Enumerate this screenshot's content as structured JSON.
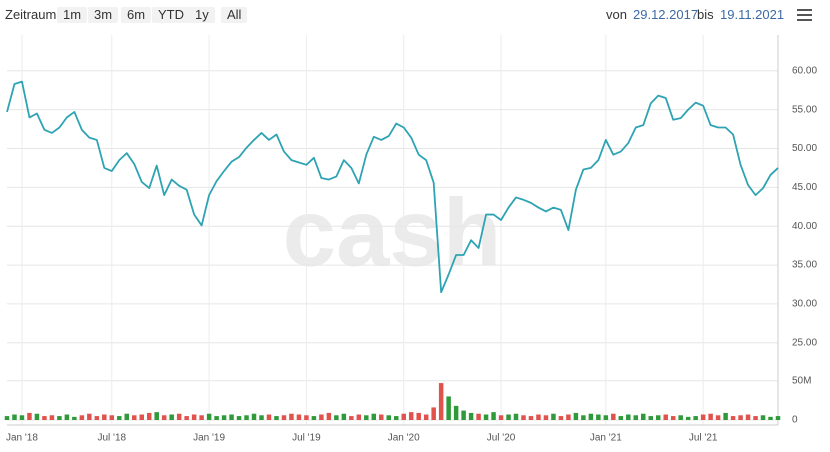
{
  "toolbar": {
    "range_label": "Zeitraum",
    "buttons": [
      "1m",
      "3m",
      "6m",
      "YTD",
      "1y",
      "All"
    ],
    "from_label": "von",
    "from_date": "29.12.2017",
    "to_label": "bis",
    "to_date": "19.11.2021"
  },
  "watermark": "cash",
  "chart_data": [
    {
      "type": "line",
      "categories": [
        null,
        null,
        "Jan '18",
        null,
        null,
        null,
        null,
        null,
        null,
        null,
        null,
        null,
        null,
        null,
        "Jul '18",
        null,
        null,
        null,
        null,
        null,
        null,
        null,
        null,
        null,
        null,
        null,
        null,
        "Jan '19",
        null,
        null,
        null,
        null,
        null,
        null,
        null,
        null,
        null,
        null,
        null,
        null,
        "Jul '19",
        null,
        null,
        null,
        null,
        null,
        null,
        null,
        null,
        null,
        null,
        null,
        null,
        "Jan '20",
        null,
        null,
        null,
        null,
        null,
        null,
        null,
        null,
        null,
        null,
        null,
        null,
        "Jul '20",
        null,
        null,
        null,
        null,
        null,
        null,
        null,
        null,
        null,
        null,
        null,
        null,
        null,
        "Jan '21",
        null,
        null,
        null,
        null,
        null,
        null,
        null,
        null,
        null,
        null,
        null,
        null,
        "Jul '21",
        null,
        null,
        null,
        null,
        null,
        null,
        null,
        null,
        null,
        null
      ],
      "values": [
        54.7,
        58.3,
        58.6,
        54,
        54.5,
        52.4,
        52,
        52.7,
        54,
        54.7,
        52.4,
        51.4,
        51.1,
        47.5,
        47.1,
        48.5,
        49.4,
        48,
        45.7,
        44.9,
        47.8,
        44,
        46,
        45.2,
        44.7,
        41.5,
        40.1,
        44,
        45.8,
        47.1,
        48.3,
        48.9,
        50.1,
        51.1,
        52,
        51.1,
        51.8,
        49.6,
        48.5,
        48.2,
        47.9,
        48.8,
        46.2,
        46,
        46.4,
        48.5,
        47.5,
        45.5,
        49.2,
        51.5,
        51.1,
        51.6,
        53.2,
        52.7,
        51.4,
        49.2,
        48.5,
        45.6,
        31.5,
        33.8,
        36.3,
        36.3,
        38.2,
        37.2,
        41.5,
        41.5,
        40.8,
        42.4,
        43.7,
        43.4,
        43,
        42.4,
        41.9,
        42.4,
        42.1,
        39.5,
        44.7,
        47.3,
        47.5,
        48.5,
        51.1,
        49.2,
        49.6,
        50.7,
        52.7,
        53,
        55.8,
        56.8,
        56.5,
        53.7,
        53.9,
        55,
        55.9,
        55.5,
        53,
        52.7,
        52.7,
        51.8,
        47.9,
        45.3,
        44,
        44.9,
        46.6,
        47.5
      ],
      "color": "#2ea3b3",
      "ylim": [
        21.5,
        64.6
      ],
      "yticks": [
        {
          "value": 25,
          "label": "25.00"
        },
        {
          "value": 30,
          "label": "30.00"
        },
        {
          "value": 35,
          "label": "35.00"
        },
        {
          "value": 40,
          "label": "40.00"
        },
        {
          "value": 45,
          "label": "45.00"
        },
        {
          "value": 50,
          "label": "50.00"
        },
        {
          "value": 55,
          "label": "55.00"
        },
        {
          "value": 60,
          "label": "60.00"
        }
      ],
      "grid": true
    },
    {
      "type": "bar",
      "values": [
        5000000,
        7000000,
        6000000,
        9000000,
        8000000,
        5000000,
        6000000,
        5000000,
        7000000,
        4000000,
        6000000,
        8000000,
        5000000,
        7000000,
        6000000,
        5000000,
        8000000,
        6000000,
        7000000,
        9000000,
        10000000,
        6000000,
        7000000,
        8000000,
        5000000,
        7000000,
        6000000,
        8000000,
        5000000,
        6000000,
        7000000,
        5000000,
        6000000,
        8000000,
        6000000,
        7000000,
        5000000,
        6000000,
        8000000,
        7000000,
        6000000,
        5000000,
        7000000,
        9000000,
        6000000,
        8000000,
        5000000,
        7000000,
        6000000,
        8000000,
        7000000,
        6000000,
        5000000,
        8000000,
        10000000,
        9000000,
        7000000,
        16000000,
        47000000,
        30000000,
        18000000,
        12000000,
        9000000,
        8000000,
        7000000,
        10000000,
        6000000,
        7000000,
        8000000,
        6000000,
        5000000,
        7000000,
        6000000,
        8000000,
        5000000,
        7000000,
        9000000,
        6000000,
        8000000,
        7000000,
        6000000,
        8000000,
        5000000,
        7000000,
        6000000,
        8000000,
        5000000,
        6000000,
        7000000,
        5000000,
        6000000,
        4000000,
        5000000,
        7000000,
        8000000,
        6000000,
        9000000,
        5000000,
        6000000,
        7000000,
        5000000,
        6000000,
        4000000,
        5000000
      ],
      "up_color": "#2f9a3a",
      "down_color": "#e0524c",
      "ylim": [
        0,
        56000000
      ],
      "yticks": [
        0,
        {
          "value": 50000000,
          "label": "50M"
        }
      ]
    }
  ]
}
